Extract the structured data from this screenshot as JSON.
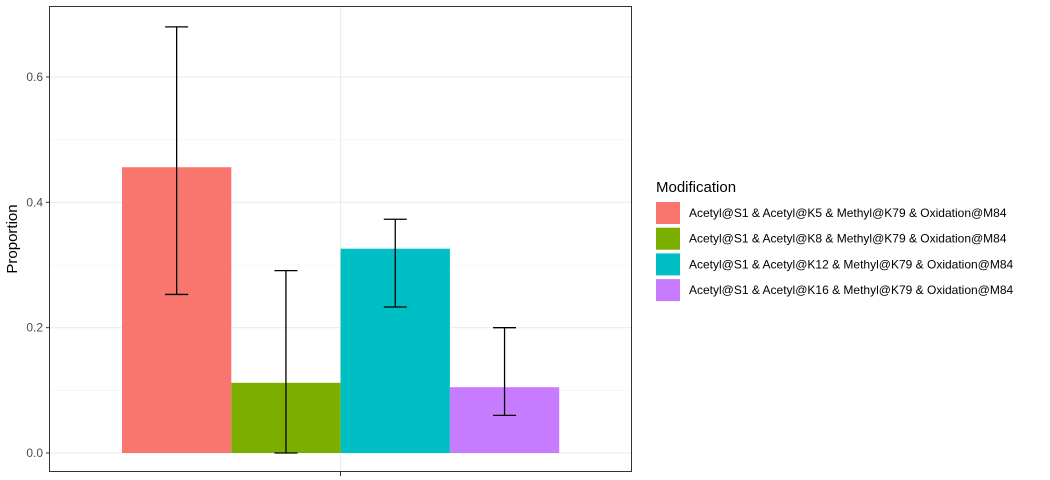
{
  "chart_data": {
    "type": "bar",
    "title": "",
    "xlabel": "",
    "ylabel": "Proportion",
    "ylim": [
      -0.03,
      0.7
    ],
    "yticks": [
      0.0,
      0.2,
      0.4,
      0.6
    ],
    "ytick_labels": [
      "0.0",
      "0.2",
      "0.4",
      "0.6"
    ],
    "grid": true,
    "legend_title": "Modification",
    "legend_position": "right",
    "series": [
      {
        "name": "Acetyl@S1 & Acetyl@K5 & Methyl@K79 & Oxidation@M84",
        "value": 0.456,
        "error_low": 0.253,
        "error_high": 0.68,
        "color": "#F8766D"
      },
      {
        "name": "Acetyl@S1 & Acetyl@K8 & Methyl@K79 & Oxidation@M84",
        "value": 0.112,
        "error_low": 0.0,
        "error_high": 0.291,
        "color": "#7CAE00"
      },
      {
        "name": "Acetyl@S1 & Acetyl@K12 & Methyl@K79 & Oxidation@M84",
        "value": 0.326,
        "error_low": 0.233,
        "error_high": 0.373,
        "color": "#00BFC4"
      },
      {
        "name": "Acetyl@S1 & Acetyl@K16 & Methyl@K79 & Oxidation@M84",
        "value": 0.105,
        "error_low": 0.06,
        "error_high": 0.2,
        "color": "#C77CFF"
      }
    ]
  }
}
